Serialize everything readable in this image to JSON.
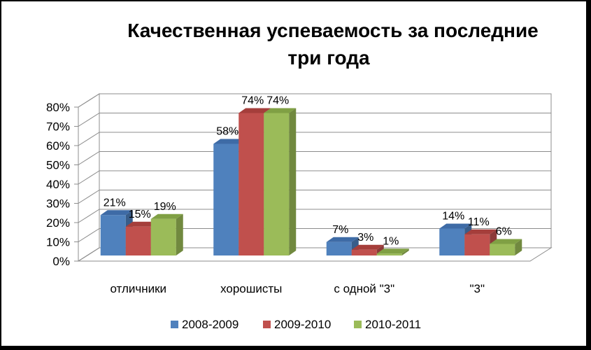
{
  "chart_data": {
    "type": "bar",
    "title_lines": [
      "Качественная успеваемость за последние",
      "три года"
    ],
    "categories": [
      "отличники",
      "хорошисты",
      "с одной \"3\"",
      "\"3\""
    ],
    "series": [
      {
        "name": "2008-2009",
        "values": [
          21,
          58,
          7,
          14
        ],
        "labels": [
          "21%",
          "58%",
          "7%",
          "14%"
        ],
        "color": "#4F81BD",
        "top": "#3E6BA6",
        "side": "#385D8A"
      },
      {
        "name": "2009-2010",
        "values": [
          15,
          74,
          3,
          11
        ],
        "labels": [
          "15%",
          "74%",
          "3%",
          "11%"
        ],
        "color": "#C0504D",
        "top": "#A53E3B",
        "side": "#8C3A38"
      },
      {
        "name": "2010-2011",
        "values": [
          19,
          74,
          1,
          6
        ],
        "labels": [
          "19%",
          "74%",
          "1%",
          "6%"
        ],
        "color": "#9BBB59",
        "top": "#80A044",
        "side": "#71893F"
      }
    ],
    "y_ticks": [
      "0%",
      "10%",
      "20%",
      "30%",
      "40%",
      "50%",
      "60%",
      "70%",
      "80%"
    ],
    "ylim": [
      0,
      80
    ],
    "grid": true,
    "legend_position": "bottom",
    "style": "3d-clustered-column"
  }
}
